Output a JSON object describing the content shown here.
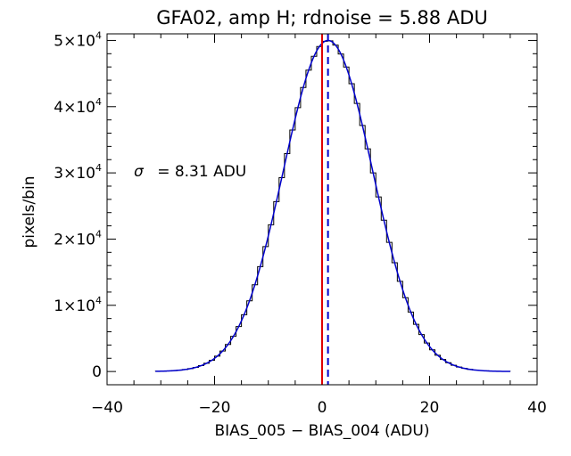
{
  "chart_data": {
    "type": "histogram",
    "title": "GFA02, amp H; rdnoise = 5.88 ADU",
    "xlabel": "BIAS_005 − BIAS_004 (ADU)",
    "ylabel": "pixels/bin",
    "xlim": [
      -40,
      40
    ],
    "ylim": [
      0,
      50000
    ],
    "x_ticks": [
      -40,
      -20,
      0,
      20,
      40
    ],
    "x_tick_labels": [
      "−40",
      "−20",
      "0",
      "20",
      "40"
    ],
    "y_ticks": [
      0,
      10000,
      20000,
      30000,
      40000,
      50000
    ],
    "y_tick_labels": [
      {
        "mantissa": "0",
        "exp": ""
      },
      {
        "mantissa": "1×10",
        "exp": "4"
      },
      {
        "mantissa": "2×10",
        "exp": "4"
      },
      {
        "mantissa": "3×10",
        "exp": "4"
      },
      {
        "mantissa": "4×10",
        "exp": "4"
      },
      {
        "mantissa": "5×10",
        "exp": "4"
      }
    ],
    "annotation": {
      "symbol": "σ",
      "text": "= 8.31 ADU"
    },
    "histogram": {
      "bin_width": 1,
      "range": [
        -31,
        35
      ],
      "peak": 50000,
      "center": 1.1,
      "sigma": 8.31
    },
    "fit": {
      "type": "gaussian",
      "amplitude": 50000,
      "mean": 1.1,
      "sigma": 8.31
    },
    "vlines": [
      {
        "x": 0,
        "style": "solid",
        "color": "#e00000"
      },
      {
        "x": 1.1,
        "style": "dashed",
        "color": "#0000cc"
      }
    ],
    "colors": {
      "histogram": "#000000",
      "fit": "#0000cc",
      "axes": "#000000"
    }
  }
}
